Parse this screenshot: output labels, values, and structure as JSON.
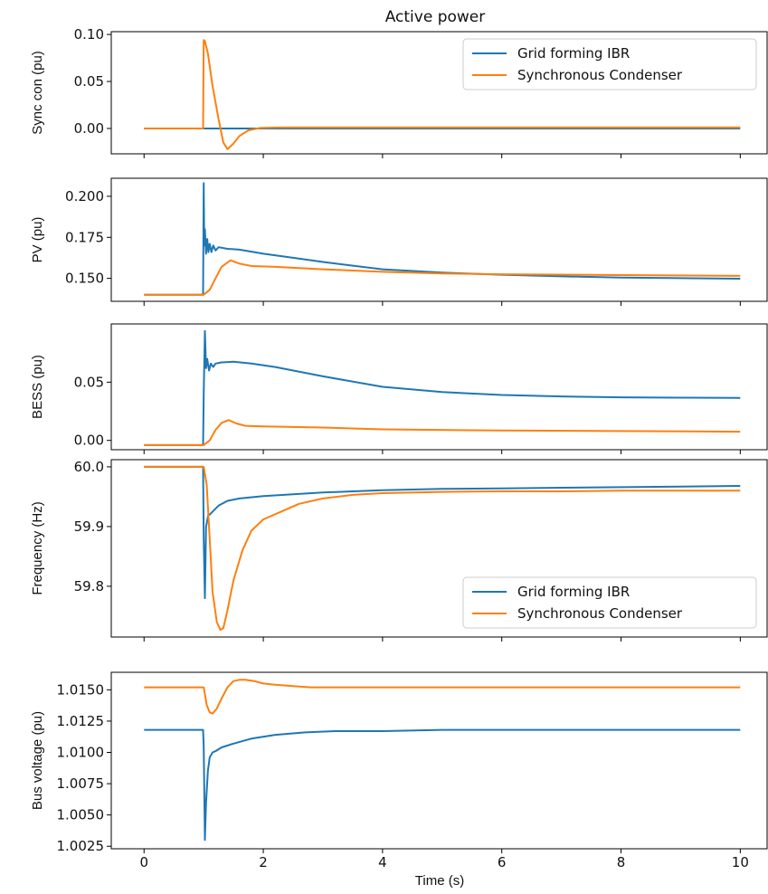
{
  "title": "Active power",
  "xlabel": "Time (s)",
  "xticks": [
    0,
    2,
    4,
    6,
    8,
    10
  ],
  "xlim": [
    -0.55,
    10.45
  ],
  "colors": {
    "Grid forming IBR": "#1f77b4",
    "Synchronous Condenser": "#ff7f0e"
  },
  "chart_data": [
    {
      "type": "line",
      "ylabel": "Sync con (pu)",
      "ylim": [
        -0.027,
        0.103
      ],
      "yticks": [
        0.0,
        0.05,
        0.1
      ],
      "ytick_labels": [
        "0.00",
        "0.05",
        "0.10"
      ],
      "legend": {
        "location": "upper-right",
        "entries": [
          "Grid forming IBR",
          "Synchronous Condenser"
        ]
      },
      "series": [
        {
          "name": "Grid forming IBR",
          "x": [
            0,
            1.0,
            10
          ],
          "y": [
            0.0,
            0.0,
            0.0
          ]
        },
        {
          "name": "Synchronous Condenser",
          "x": [
            0,
            0.99,
            1.0,
            1.02,
            1.07,
            1.15,
            1.25,
            1.33,
            1.4,
            1.5,
            1.6,
            1.75,
            1.95,
            2.3,
            3,
            10
          ],
          "y": [
            0.0,
            0.0,
            0.094,
            0.093,
            0.08,
            0.045,
            0.01,
            -0.015,
            -0.022,
            -0.016,
            -0.008,
            -0.002,
            0.0005,
            0.001,
            0.001,
            0.001
          ]
        }
      ]
    },
    {
      "type": "line",
      "ylabel": "PV (pu)",
      "ylim": [
        0.136,
        0.211
      ],
      "yticks": [
        0.15,
        0.175,
        0.2
      ],
      "ytick_labels": [
        "0.150",
        "0.175",
        "0.200"
      ],
      "series": [
        {
          "name": "Grid forming IBR",
          "x": [
            0,
            0.99,
            1.0,
            1.01,
            1.02,
            1.04,
            1.06,
            1.08,
            1.1,
            1.13,
            1.16,
            1.2,
            1.25,
            1.4,
            1.6,
            2,
            2.5,
            3,
            4,
            5,
            6,
            7,
            8,
            9,
            10
          ],
          "y": [
            0.14,
            0.14,
            0.208,
            0.17,
            0.18,
            0.165,
            0.174,
            0.166,
            0.171,
            0.166,
            0.17,
            0.167,
            0.169,
            0.168,
            0.1675,
            0.165,
            0.1625,
            0.16,
            0.1555,
            0.1535,
            0.1522,
            0.1512,
            0.1505,
            0.1501,
            0.1498
          ]
        },
        {
          "name": "Synchronous Condenser",
          "x": [
            0,
            1.0,
            1.1,
            1.2,
            1.3,
            1.45,
            1.6,
            1.8,
            2.2,
            3,
            4,
            5,
            6,
            8,
            10
          ],
          "y": [
            0.14,
            0.14,
            0.143,
            0.15,
            0.157,
            0.161,
            0.159,
            0.1575,
            0.157,
            0.1555,
            0.154,
            0.153,
            0.1525,
            0.152,
            0.1515
          ]
        }
      ]
    },
    {
      "type": "line",
      "ylabel": "BESS (pu)",
      "ylim": [
        -0.008,
        0.1
      ],
      "yticks": [
        0.0,
        0.05
      ],
      "ytick_labels": [
        "0.00",
        "0.05"
      ],
      "series": [
        {
          "name": "Grid forming IBR",
          "x": [
            0,
            0.99,
            1.0,
            1.02,
            1.04,
            1.06,
            1.09,
            1.12,
            1.16,
            1.2,
            1.3,
            1.5,
            1.8,
            2.2,
            3,
            4,
            5,
            6,
            7,
            8,
            9,
            10
          ],
          "y": [
            -0.004,
            -0.004,
            0.04,
            0.094,
            0.062,
            0.07,
            0.06,
            0.066,
            0.063,
            0.066,
            0.067,
            0.0675,
            0.066,
            0.063,
            0.055,
            0.046,
            0.0415,
            0.039,
            0.0378,
            0.037,
            0.0367,
            0.0365
          ]
        },
        {
          "name": "Synchronous Condenser",
          "x": [
            0,
            1.0,
            1.1,
            1.2,
            1.3,
            1.42,
            1.55,
            1.7,
            2,
            3,
            4,
            6,
            8,
            10
          ],
          "y": [
            -0.004,
            -0.004,
            0.0,
            0.009,
            0.015,
            0.0175,
            0.0145,
            0.0125,
            0.012,
            0.011,
            0.0095,
            0.0085,
            0.008,
            0.0075
          ]
        }
      ]
    },
    {
      "type": "line",
      "ylabel": "Frequency (Hz)",
      "ylim": [
        59.715,
        60.012
      ],
      "yticks": [
        59.8,
        59.9,
        60.0
      ],
      "ytick_labels": [
        "59.8",
        "59.9",
        "60.0"
      ],
      "legend": {
        "location": "lower-right",
        "entries": [
          "Grid forming IBR",
          "Synchronous Condenser"
        ]
      },
      "series": [
        {
          "name": "Grid forming IBR",
          "x": [
            0,
            0.99,
            1.0,
            1.02,
            1.04,
            1.06,
            1.08,
            1.1,
            1.15,
            1.25,
            1.4,
            1.6,
            2,
            2.5,
            3,
            4,
            5,
            6,
            7,
            8,
            9,
            10
          ],
          "y": [
            60.0,
            60.0,
            59.88,
            59.78,
            59.9,
            59.91,
            59.92,
            59.92,
            59.925,
            59.935,
            59.943,
            59.947,
            59.951,
            59.954,
            59.957,
            59.961,
            59.963,
            59.964,
            59.965,
            59.966,
            59.967,
            59.968
          ]
        },
        {
          "name": "Synchronous Condenser",
          "x": [
            0,
            1.0,
            1.05,
            1.1,
            1.15,
            1.22,
            1.28,
            1.33,
            1.4,
            1.5,
            1.65,
            1.8,
            2.0,
            2.3,
            2.6,
            3,
            3.5,
            4,
            5,
            6,
            7,
            8,
            10
          ],
          "y": [
            60.0,
            60.0,
            59.97,
            59.88,
            59.79,
            59.74,
            59.727,
            59.73,
            59.76,
            59.81,
            59.86,
            59.893,
            59.912,
            59.925,
            59.938,
            59.947,
            59.953,
            59.956,
            59.958,
            59.959,
            59.959,
            59.96,
            59.96
          ]
        }
      ]
    },
    {
      "type": "line",
      "xlabel": "Time (s)",
      "ylabel": "Bus voltage (pu)",
      "ylim": [
        1.0023,
        1.0164
      ],
      "yticks": [
        1.0025,
        1.005,
        1.0075,
        1.01,
        1.0125,
        1.015
      ],
      "ytick_labels": [
        "1.0025",
        "1.0050",
        "1.0075",
        "1.0100",
        "1.0125",
        "1.0150"
      ],
      "series": [
        {
          "name": "Grid forming IBR",
          "x": [
            0,
            0.99,
            1.0,
            1.02,
            1.04,
            1.07,
            1.1,
            1.15,
            1.2,
            1.3,
            1.5,
            1.8,
            2.2,
            2.7,
            3.2,
            4,
            5,
            6,
            8,
            10
          ],
          "y": [
            1.0118,
            1.0118,
            1.0105,
            1.003,
            1.006,
            1.0085,
            1.0096,
            1.01,
            1.0101,
            1.0104,
            1.0107,
            1.0111,
            1.0114,
            1.0116,
            1.0117,
            1.0117,
            1.0118,
            1.0118,
            1.0118,
            1.0118
          ]
        },
        {
          "name": "Synchronous Condenser",
          "x": [
            0,
            0.99,
            1.0,
            1.05,
            1.1,
            1.15,
            1.22,
            1.3,
            1.4,
            1.5,
            1.6,
            1.7,
            1.85,
            2.0,
            2.2,
            2.5,
            2.8,
            3.2,
            4,
            10
          ],
          "y": [
            1.0152,
            1.0152,
            1.0152,
            1.0138,
            1.0132,
            1.0131,
            1.0135,
            1.0143,
            1.0152,
            1.0157,
            1.0158,
            1.0158,
            1.0157,
            1.0155,
            1.0154,
            1.0153,
            1.0152,
            1.0152,
            1.0152,
            1.0152
          ]
        }
      ]
    }
  ]
}
